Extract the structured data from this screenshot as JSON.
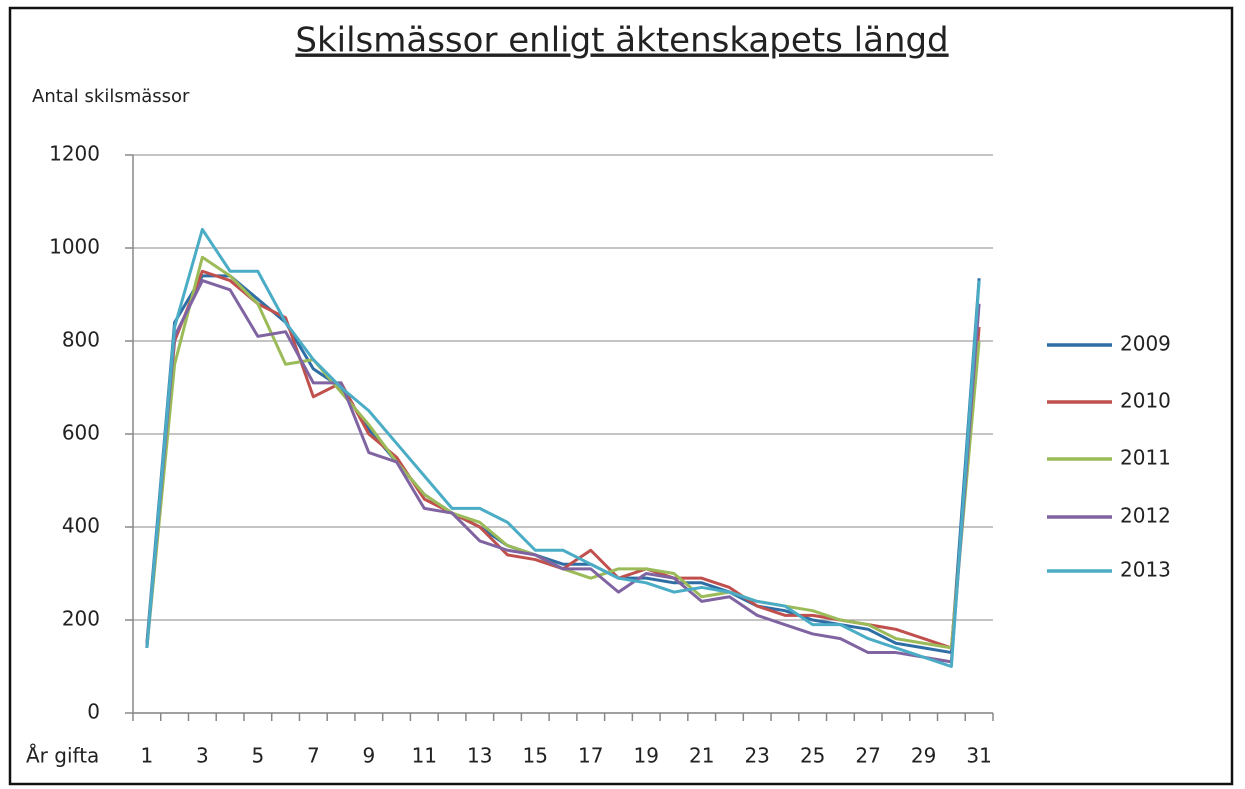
{
  "chart_data": {
    "type": "line",
    "title": "Skilsmässor enligt äktenskapets längd",
    "y_label": "Antal skilsmässor",
    "x_label": "År gifta",
    "categories": [
      1,
      null,
      3,
      null,
      5,
      null,
      7,
      null,
      9,
      null,
      11,
      null,
      13,
      null,
      15,
      null,
      17,
      null,
      19,
      null,
      21,
      null,
      23,
      null,
      25,
      null,
      27,
      null,
      29,
      null,
      31
    ],
    "ylim": [
      0,
      1200
    ],
    "yticks": [
      0,
      200,
      400,
      600,
      800,
      1000,
      1200
    ],
    "grid": true,
    "legend": "right",
    "series": [
      {
        "name": "2009",
        "color": "#2f6ea5",
        "values": [
          150,
          840,
          940,
          940,
          890,
          840,
          740,
          700,
          610,
          540,
          470,
          430,
          400,
          360,
          340,
          320,
          320,
          290,
          290,
          280,
          280,
          260,
          230,
          220,
          200,
          190,
          180,
          150,
          140,
          130,
          935
        ]
      },
      {
        "name": "2010",
        "color": "#c0504d",
        "values": [
          145,
          800,
          950,
          930,
          880,
          850,
          680,
          710,
          600,
          550,
          460,
          430,
          400,
          340,
          330,
          310,
          350,
          290,
          310,
          290,
          290,
          270,
          230,
          210,
          210,
          200,
          190,
          180,
          160,
          140,
          830
        ]
      },
      {
        "name": "2011",
        "color": "#9bbb59",
        "values": [
          140,
          750,
          980,
          940,
          880,
          750,
          760,
          690,
          620,
          540,
          470,
          430,
          410,
          360,
          340,
          310,
          290,
          310,
          310,
          300,
          250,
          260,
          240,
          230,
          220,
          200,
          190,
          160,
          150,
          140,
          800
        ]
      },
      {
        "name": "2012",
        "color": "#8064a2",
        "values": [
          140,
          810,
          930,
          910,
          810,
          820,
          710,
          710,
          560,
          540,
          440,
          430,
          370,
          350,
          340,
          310,
          310,
          260,
          300,
          290,
          240,
          250,
          210,
          190,
          170,
          160,
          130,
          130,
          120,
          110,
          880
        ]
      },
      {
        "name": "2013",
        "color": "#4bacc6",
        "values": [
          140,
          830,
          1040,
          950,
          950,
          840,
          760,
          700,
          650,
          580,
          510,
          440,
          440,
          410,
          350,
          350,
          320,
          290,
          280,
          260,
          270,
          260,
          240,
          230,
          190,
          190,
          160,
          140,
          120,
          100,
          930
        ]
      }
    ]
  }
}
